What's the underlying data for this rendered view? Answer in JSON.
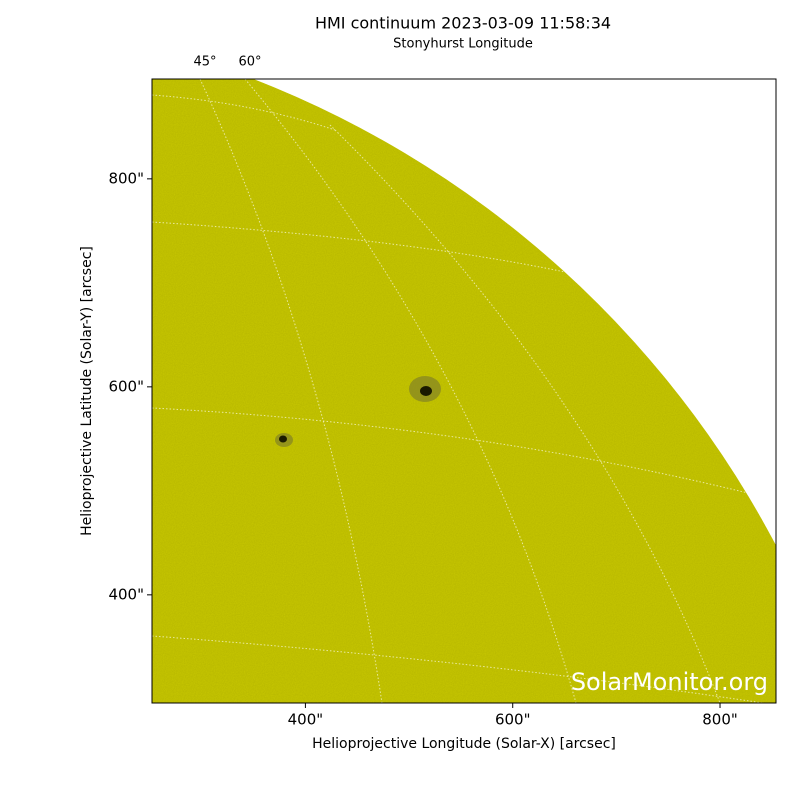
{
  "chart_data": {
    "type": "image",
    "title": "HMI continuum 2023-03-09 11:58:34",
    "subtitle": "Stonyhurst Longitude",
    "top_tick_labels": [
      "45°",
      "60°"
    ],
    "xlabel": "Helioprojective Longitude (Solar-X) [arcsec]",
    "ylabel": "Helioprojective Latitude (Solar-Y) [arcsec]",
    "watermark": "SolarMonitor.org",
    "xlim": [
      252,
      854
    ],
    "ylim": [
      296,
      896
    ],
    "xticks": [
      {
        "value": 400,
        "label": "400\""
      },
      {
        "value": 600,
        "label": "600\""
      },
      {
        "value": 800,
        "label": "800\""
      }
    ],
    "yticks": [
      {
        "value": 400,
        "label": "400\""
      },
      {
        "value": 600,
        "label": "600\""
      },
      {
        "value": 800,
        "label": "800\""
      }
    ],
    "color": "#c8c800"
  }
}
